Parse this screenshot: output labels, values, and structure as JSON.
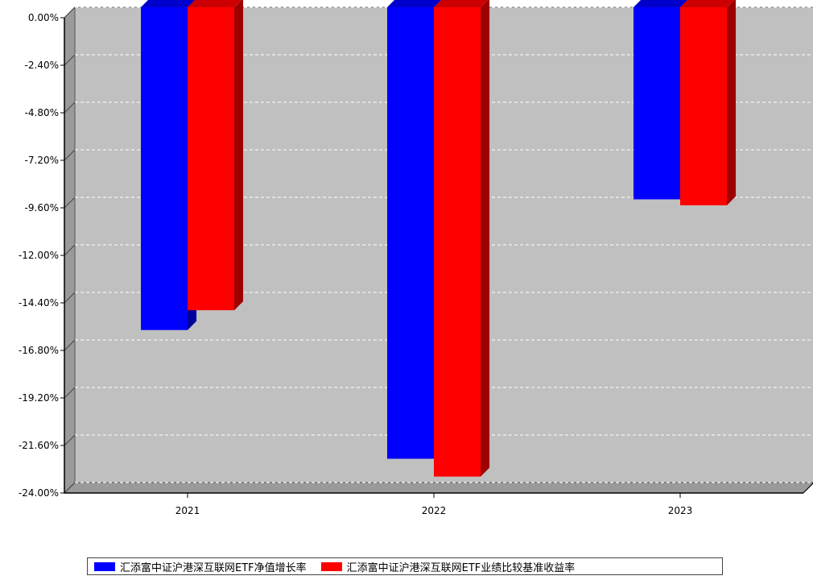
{
  "chart_data": {
    "type": "bar",
    "categories": [
      "2021",
      "2022",
      "2023"
    ],
    "series": [
      {
        "name": "汇添富中证沪港深互联网ETF净值增长率",
        "values": [
          -16.3,
          -22.8,
          -9.7
        ],
        "color": "#0000ff"
      },
      {
        "name": "汇添富中证沪港深互联网ETF业绩比较基准收益率",
        "values": [
          -15.3,
          -23.7,
          -10.0
        ],
        "color": "#ff0000"
      }
    ],
    "ylim": [
      -24,
      0
    ],
    "ytick_labels": [
      "0.00%",
      "-2.40%",
      "-4.80%",
      "-7.20%",
      "-9.60%",
      "-12.00%",
      "-14.40%",
      "-16.80%",
      "-19.20%",
      "-21.60%",
      "-24.00%"
    ],
    "grid": true,
    "legend_position": "bottom",
    "plot_background": "#c0c0c0"
  }
}
